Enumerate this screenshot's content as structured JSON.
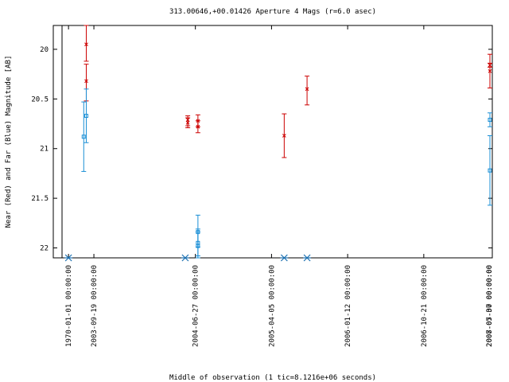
{
  "chart_data": {
    "type": "scatter",
    "title": "313.00646,+00.01426   Aperture 4 Mags (r=6.0 asec)",
    "xlabel": "Middle of observation (1 tic=8.1216e+06 seconds)",
    "ylabel": "Near (Red) and Far (Blue) Magnitude [AB]",
    "y_inverted": true,
    "ylim": [
      22.1,
      19.76
    ],
    "yticks": [
      20,
      20.5,
      21,
      21.5,
      22
    ],
    "ytick_labels": [
      "20",
      "20.5",
      "21",
      "21.5",
      "22"
    ],
    "xlim_tics": [
      -0.6,
      16.7
    ],
    "xticks": [
      {
        "t": 0,
        "label": "1970-01-01 00:00:00"
      },
      {
        "t": 1,
        "label": "2003-09-19 00:00:00"
      },
      {
        "t": 5,
        "label": "2004-06-27 00:00:00"
      },
      {
        "t": 8,
        "label": "2005-04-05 00:00:00"
      },
      {
        "t": 11,
        "label": "2006-01-12 00:00:00"
      },
      {
        "t": 14,
        "label": "2006-10-21 00:00:00"
      },
      {
        "t": 17,
        "label": "2007-07-30 00:00:00"
      },
      {
        "t": 20,
        "label": "2008-05-07 00:00:00"
      }
    ],
    "series": [
      {
        "color": "#cc0000",
        "marker": "x",
        "points": [
          {
            "t": 0.7,
            "y": 20.32,
            "lo": 20.15,
            "hi": 20.52
          },
          {
            "t": 0.7,
            "y": 19.95,
            "lo": 19.75,
            "hi": 20.12
          },
          {
            "t": 4.7,
            "y": 20.71,
            "lo": 20.67,
            "hi": 20.77
          },
          {
            "t": 4.7,
            "y": 20.74,
            "lo": 20.69,
            "hi": 20.79
          },
          {
            "t": 5.1,
            "y": 20.72,
            "lo": 20.66,
            "hi": 20.78
          },
          {
            "t": 5.1,
            "y": 20.78,
            "lo": 20.72,
            "hi": 20.84
          },
          {
            "t": 8.5,
            "y": 20.87,
            "lo": 20.65,
            "hi": 21.09
          },
          {
            "t": 9.4,
            "y": 20.4,
            "lo": 20.27,
            "hi": 20.56
          },
          {
            "t": 16.8,
            "y": 20.22,
            "lo": 20.05,
            "hi": 20.39
          },
          {
            "t": 21.1,
            "y": 20.16,
            "lo": 20.14,
            "hi": 20.18
          }
        ]
      },
      {
        "color": "#1a8fd6",
        "marker": "square",
        "points": [
          {
            "t": 0.6,
            "y": 20.88,
            "lo": 20.53,
            "hi": 21.23
          },
          {
            "t": 0.7,
            "y": 20.67,
            "lo": 20.4,
            "hi": 20.94
          },
          {
            "t": 5.1,
            "y": 21.84,
            "lo": 21.67,
            "hi": 21.99
          },
          {
            "t": 5.1,
            "y": 21.95,
            "lo": 21.81,
            "hi": 22.08
          },
          {
            "t": 5.1,
            "y": 21.98,
            "lo": 21.84,
            "hi": 22.11
          },
          {
            "t": 16.8,
            "y": 21.22,
            "lo": 20.87,
            "hi": 21.57
          },
          {
            "t": 21.1,
            "y": 20.71,
            "lo": 20.64,
            "hi": 20.78
          }
        ]
      }
    ],
    "bottom_markers": [
      {
        "t": 0,
        "color": "#1a6fb0"
      },
      {
        "t": 4.6,
        "color": "#1a6fb0"
      },
      {
        "t": 8.5,
        "color": "#1a6fb0"
      },
      {
        "t": 9.4,
        "color": "#1a6fb0"
      }
    ]
  }
}
